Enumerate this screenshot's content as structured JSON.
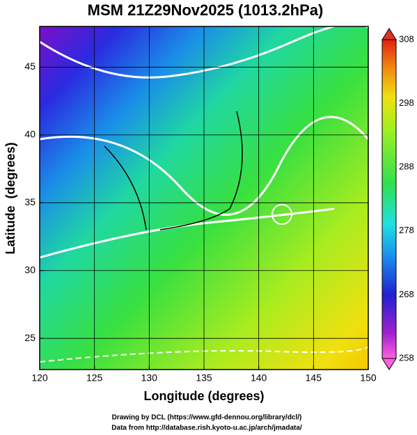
{
  "chart_data": {
    "type": "map",
    "title": "MSM 21Z29Nov2025 (1013.2hPa)",
    "x_label": "Longitude (degrees)",
    "y_label": "Latitude  (degrees)",
    "xlim": [
      120,
      150
    ],
    "xticks": [
      120,
      125,
      130,
      135,
      140,
      145,
      150
    ],
    "ylim": [
      22.7,
      48
    ],
    "yticks": [
      25,
      30,
      35,
      40,
      45
    ],
    "grid": true,
    "colorbar": {
      "lim": [
        258,
        308
      ],
      "ticks": [
        258,
        268,
        278,
        288,
        298,
        308
      ]
    },
    "credits": [
      "Drawing by DCL (https://www.gfd-dennou.org/library/dcl/)",
      "Data from http://database.rish.kyoto-u.ac.jp/arch/jmadata/"
    ]
  }
}
